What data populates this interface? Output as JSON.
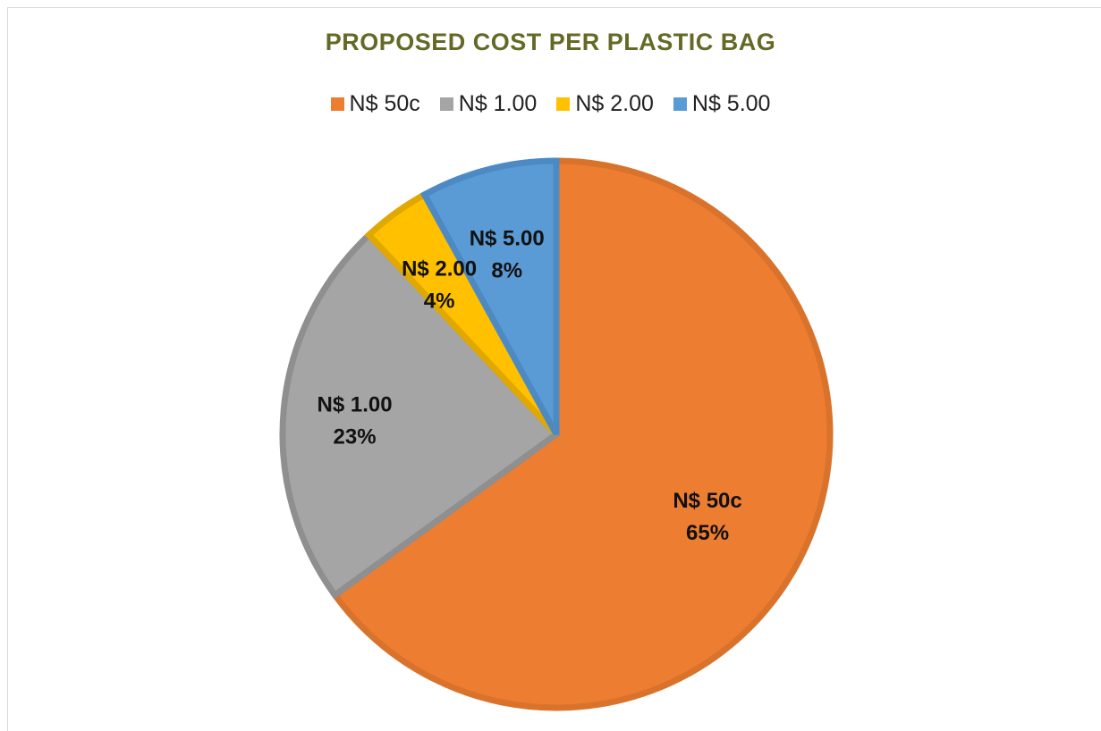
{
  "chart_data": {
    "type": "pie",
    "title": "PROPOSED COST PER PLASTIC BAG",
    "legend_position": "top",
    "categories": [
      "N$ 50c",
      "N$ 1.00",
      "N$ 2.00",
      "N$ 5.00"
    ],
    "values": [
      65,
      23,
      4,
      8
    ],
    "value_labels": [
      "65%",
      "23%",
      "4%",
      "8%"
    ],
    "colors": [
      "#ed7d31",
      "#a5a5a5",
      "#ffc000",
      "#5b9bd5"
    ],
    "border_colors": [
      "#d9732c",
      "#8f8f8f",
      "#e0a800",
      "#4d8ac4"
    ]
  }
}
